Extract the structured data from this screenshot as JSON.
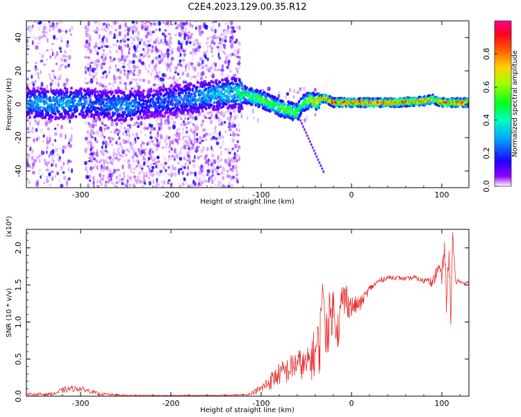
{
  "title": "C2E4.2023.129.00.35.R12",
  "chart_data": [
    {
      "type": "heatmap",
      "xlabel": "Height of straight line (km)",
      "ylabel": "Frequency (Hz)",
      "xlim": [
        -360,
        130
      ],
      "ylim": [
        -50,
        50
      ],
      "x_ticks": [
        -300,
        -200,
        -100,
        0,
        100
      ],
      "y_ticks": [
        -40,
        -20,
        0,
        20,
        40
      ],
      "colorbar": {
        "label": "Normalized spectral amplitude",
        "range": [
          0,
          1
        ],
        "ticks": [
          "0.0",
          "0.2",
          "0.4",
          "0.6",
          "0.8"
        ],
        "colors": [
          "#ffffff",
          "#7b00ff",
          "#0000ff",
          "#00e0ff",
          "#00ff40",
          "#ffff00",
          "#ff8000",
          "#ff0000",
          "#ff00a0"
        ]
      },
      "ridge": {
        "x": [
          -360,
          -330,
          -300,
          -280,
          -260,
          -240,
          -230,
          -130,
          -120,
          -100,
          -80,
          -60,
          -55,
          -45,
          -40,
          -30,
          -20,
          -10,
          0,
          20,
          50,
          80,
          90,
          100,
          110,
          130
        ],
        "freq": [
          1,
          0,
          1,
          0,
          -1,
          -1,
          0,
          7,
          6,
          3,
          -2,
          -5,
          0,
          3,
          1,
          4,
          1,
          1,
          1,
          1,
          1,
          2,
          3,
          1,
          1,
          1
        ],
        "amplitude": [
          0.3,
          0.35,
          0.3,
          0.25,
          0.3,
          0.3,
          0.2,
          0.4,
          0.5,
          0.6,
          0.6,
          0.6,
          0.5,
          0.7,
          0.8,
          0.85,
          0.9,
          0.9,
          0.9,
          0.9,
          0.9,
          0.85,
          0.7,
          0.85,
          0.9,
          0.9
        ]
      },
      "noise_regions": [
        {
          "x": [
            -360,
            -310
          ],
          "freq": [
            -50,
            50
          ],
          "density": "medium"
        },
        {
          "x": [
            -295,
            -125
          ],
          "freq": [
            -50,
            50
          ],
          "density": "high"
        },
        {
          "x": [
            -125,
            -35
          ],
          "freq": [
            -10,
            10
          ],
          "density": "low"
        }
      ]
    },
    {
      "type": "line",
      "xlabel": "Height of straight line (km)",
      "ylabel": "SNR (10 * v/v)",
      "y_multiplier": "(x10⁴)",
      "xlim": [
        -360,
        130
      ],
      "ylim": [
        0,
        2.25
      ],
      "x_ticks": [
        -300,
        -200,
        -100,
        0,
        100
      ],
      "y_ticks": [
        "0.0",
        "0.5",
        "1.0",
        "1.5",
        "2.0"
      ],
      "color": "#e8302f",
      "x": [
        -360,
        -330,
        -320,
        -310,
        -300,
        -290,
        -280,
        -250,
        -200,
        -150,
        -115,
        -100,
        -90,
        -80,
        -70,
        -60,
        -50,
        -45,
        -40,
        -35,
        -32,
        -30,
        -25,
        -20,
        -15,
        -10,
        -5,
        0,
        10,
        20,
        30,
        40,
        50,
        60,
        70,
        80,
        85,
        90,
        95,
        100,
        103,
        105,
        108,
        110,
        112,
        115,
        120,
        125,
        130
      ],
      "y": [
        0.02,
        0.03,
        0.08,
        0.1,
        0.1,
        0.07,
        0.03,
        0.01,
        0.01,
        0.01,
        0.02,
        0.1,
        0.2,
        0.3,
        0.35,
        0.45,
        0.4,
        0.5,
        0.6,
        0.7,
        1.6,
        0.9,
        1.0,
        1.2,
        0.9,
        1.3,
        1.3,
        1.2,
        1.25,
        1.45,
        1.55,
        1.6,
        1.6,
        1.58,
        1.6,
        1.55,
        1.6,
        1.5,
        1.75,
        1.6,
        2.0,
        1.3,
        1.9,
        1.1,
        2.15,
        1.55,
        1.55,
        1.52,
        1.53
      ],
      "noise_amplitude": [
        0.02,
        0.02,
        0.04,
        0.04,
        0.04,
        0.03,
        0.02,
        0.01,
        0.005,
        0.005,
        0.01,
        0.06,
        0.12,
        0.15,
        0.18,
        0.2,
        0.2,
        0.3,
        0.35,
        0.4,
        0.1,
        0.4,
        0.4,
        0.3,
        0.3,
        0.3,
        0.25,
        0.15,
        0.1,
        0.05,
        0.04,
        0.03,
        0.03,
        0.03,
        0.03,
        0.04,
        0.05,
        0.08,
        0.12,
        0.15,
        0.1,
        0.2,
        0.1,
        0.2,
        0.1,
        0.05,
        0.02,
        0.02,
        0.02
      ]
    }
  ]
}
